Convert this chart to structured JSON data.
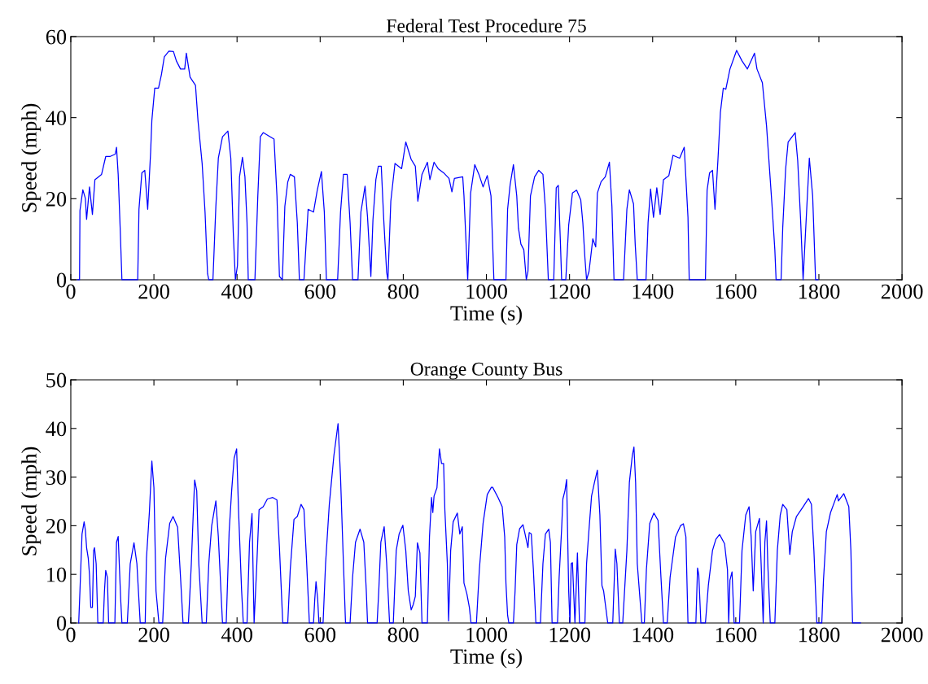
{
  "chart_data": [
    {
      "type": "line",
      "title": "Federal Test Procedure 75",
      "xlabel": "Time (s)",
      "ylabel": "Speed (mph)",
      "xlim": [
        0,
        2000
      ],
      "xticks": [
        0,
        200,
        400,
        600,
        800,
        1000,
        1200,
        1400,
        1600,
        1800,
        2000
      ],
      "ylim": [
        0,
        60
      ],
      "yticks": [
        0,
        20,
        40,
        60
      ],
      "grid": false,
      "series": [
        {
          "color": "#0000ff",
          "x": [
            16,
            21,
            22,
            29,
            35,
            38,
            45,
            52,
            58,
            74,
            84,
            94,
            107,
            110,
            114,
            119,
            123,
            161,
            164,
            171,
            178,
            185,
            192,
            195,
            202,
            211,
            218,
            225,
            236,
            247,
            254,
            264,
            274,
            278,
            287,
            300,
            306,
            316,
            323,
            329,
            332,
            342,
            349,
            355,
            365,
            378,
            385,
            391,
            396,
            401,
            406,
            413,
            419,
            424,
            427,
            443,
            450,
            456,
            463,
            479,
            489,
            496,
            502,
            509,
            515,
            522,
            528,
            538,
            545,
            550,
            561,
            571,
            584,
            593,
            603,
            610,
            615,
            642,
            649,
            656,
            665,
            672,
            678,
            691,
            698,
            708,
            714,
            722,
            727,
            734,
            740,
            747,
            753,
            760,
            763,
            770,
            780,
            796,
            806,
            819,
            829,
            835,
            845,
            858,
            864,
            874,
            884,
            897,
            910,
            917,
            923,
            943,
            946,
            955,
            962,
            972,
            982,
            992,
            1002,
            1011,
            1018,
            1047,
            1051,
            1057,
            1065,
            1073,
            1077,
            1083,
            1090,
            1096,
            1100,
            1106,
            1116,
            1126,
            1136,
            1142,
            1149,
            1162,
            1168,
            1173,
            1178,
            1181,
            1191,
            1198,
            1207,
            1217,
            1227,
            1232,
            1237,
            1241,
            1247,
            1256,
            1263,
            1267,
            1276,
            1286,
            1296,
            1302,
            1307,
            1330,
            1338,
            1344,
            1354,
            1358,
            1363,
            1384,
            1389,
            1395,
            1402,
            1410,
            1418,
            1426,
            1439,
            1449,
            1465,
            1476,
            1485,
            1488,
            1527,
            1531,
            1537,
            1544,
            1550,
            1557,
            1563,
            1570,
            1576,
            1586,
            1602,
            1615,
            1628,
            1645,
            1651,
            1664,
            1674,
            1687,
            1694,
            1697,
            1709,
            1713,
            1720,
            1726,
            1743,
            1749,
            1756,
            1762,
            1769,
            1777,
            1785,
            1792,
            1798
          ],
          "values": [
            0,
            0,
            17.1,
            22.2,
            20.1,
            14.9,
            22.9,
            16.1,
            24.7,
            26.0,
            30.4,
            30.4,
            31.0,
            32.7,
            26.0,
            12.1,
            0,
            0,
            17.4,
            26.4,
            27.0,
            17.4,
            31.4,
            39.3,
            47.3,
            47.3,
            50.6,
            55.0,
            56.4,
            56.3,
            54.0,
            52.0,
            52.0,
            55.9,
            50.0,
            48.0,
            39.3,
            28.7,
            16.7,
            1.5,
            0,
            0,
            18.1,
            30.0,
            35.3,
            36.7,
            30.0,
            11.4,
            0,
            3.5,
            25.4,
            30.2,
            25.4,
            14.1,
            0,
            0,
            20.7,
            35.3,
            36.3,
            35.3,
            34.7,
            20.7,
            0.8,
            0,
            18.1,
            24.1,
            26.0,
            25.4,
            14.1,
            0,
            0,
            17.4,
            16.7,
            22.1,
            26.7,
            16.7,
            0,
            0,
            16.7,
            26.0,
            26.0,
            14.1,
            0,
            0,
            16.7,
            23.1,
            15.4,
            0.8,
            14.8,
            24.7,
            28.0,
            28.0,
            14.8,
            1.8,
            0,
            19.4,
            28.7,
            27.4,
            34.0,
            29.7,
            28.0,
            19.4,
            26.0,
            29.0,
            24.7,
            29.0,
            27.4,
            26.4,
            25.0,
            21.7,
            25.0,
            25.4,
            20.7,
            0,
            21.4,
            28.4,
            26.0,
            22.9,
            25.7,
            20.7,
            0,
            0,
            17.4,
            23.4,
            28.4,
            20.7,
            12.8,
            8.8,
            7.4,
            0,
            2.1,
            20.7,
            25.4,
            27.0,
            26.0,
            17.4,
            0,
            0,
            22.7,
            23.3,
            9.4,
            0,
            0,
            13.5,
            21.4,
            22.1,
            19.7,
            14.1,
            5.4,
            0,
            2.1,
            10.1,
            8.1,
            21.4,
            24.2,
            25.4,
            29.0,
            18.1,
            0,
            0,
            17.4,
            22.2,
            18.7,
            8.8,
            0,
            0,
            14.1,
            22.4,
            15.4,
            22.7,
            16.1,
            24.7,
            25.7,
            30.7,
            30.0,
            32.7,
            15.4,
            0,
            0,
            22.1,
            26.4,
            27.0,
            17.4,
            29.4,
            41.3,
            47.3,
            47.0,
            52.0,
            56.6,
            54.0,
            52.0,
            55.9,
            52.0,
            48.6,
            38.0,
            18.7,
            7.4,
            0,
            0,
            12.8,
            27.4,
            34.0,
            36.3,
            29.4,
            14.8,
            0,
            14.1,
            30.0,
            20.7,
            0,
            0
          ]
        }
      ]
    },
    {
      "type": "line",
      "title": "Orange County Bus",
      "xlabel": "Time (s)",
      "ylabel": "Speed (mph)",
      "xlim": [
        0,
        2000
      ],
      "xticks": [
        0,
        200,
        400,
        600,
        800,
        1000,
        1200,
        1400,
        1600,
        1800,
        2000
      ],
      "ylim": [
        0,
        50
      ],
      "yticks": [
        0,
        10,
        20,
        30,
        40,
        50
      ],
      "grid": false,
      "series": [
        {
          "color": "#0000ff",
          "x": [
            19,
            22,
            27,
            32,
            35,
            38,
            42,
            45,
            48,
            52,
            55,
            57,
            61,
            65,
            78,
            81,
            84,
            88,
            91,
            106,
            110,
            114,
            120,
            123,
            136,
            143,
            152,
            159,
            167,
            179,
            182,
            189,
            195,
            200,
            205,
            212,
            221,
            228,
            238,
            246,
            257,
            264,
            270,
            283,
            290,
            295,
            298,
            303,
            308,
            316,
            326,
            332,
            339,
            349,
            355,
            365,
            374,
            381,
            387,
            393,
            399,
            404,
            411,
            415,
            424,
            430,
            436,
            441,
            447,
            453,
            463,
            473,
            486,
            496,
            502,
            510,
            522,
            528,
            537,
            545,
            554,
            561,
            567,
            574,
            584,
            587,
            590,
            594,
            597,
            607,
            613,
            622,
            633,
            643,
            649,
            656,
            661,
            672,
            678,
            685,
            696,
            705,
            711,
            714,
            737,
            741,
            746,
            754,
            760,
            767,
            776,
            783,
            790,
            799,
            806,
            812,
            819,
            824,
            829,
            834,
            840,
            845,
            858,
            863,
            868,
            871,
            874,
            881,
            887,
            892,
            897,
            900,
            906,
            909,
            914,
            920,
            930,
            936,
            942,
            946,
            953,
            959,
            963,
            976,
            983,
            992,
            1002,
            1012,
            1015,
            1028,
            1038,
            1044,
            1047,
            1051,
            1054,
            1065,
            1069,
            1073,
            1080,
            1088,
            1093,
            1100,
            1103,
            1108,
            1113,
            1119,
            1130,
            1136,
            1142,
            1150,
            1154,
            1158,
            1171,
            1175,
            1181,
            1184,
            1189,
            1193,
            1198,
            1201,
            1204,
            1207,
            1213,
            1219,
            1224,
            1237,
            1241,
            1247,
            1253,
            1260,
            1267,
            1273,
            1278,
            1282,
            1292,
            1304,
            1309,
            1310,
            1314,
            1320,
            1328,
            1338,
            1344,
            1351,
            1355,
            1359,
            1363,
            1374,
            1380,
            1385,
            1393,
            1403,
            1413,
            1420,
            1426,
            1435,
            1442,
            1455,
            1467,
            1474,
            1480,
            1485,
            1504,
            1508,
            1511,
            1516,
            1527,
            1534,
            1544,
            1552,
            1561,
            1573,
            1580,
            1583,
            1586,
            1591,
            1596,
            1609,
            1615,
            1624,
            1632,
            1637,
            1642,
            1648,
            1657,
            1661,
            1666,
            1670,
            1674,
            1677,
            1683,
            1694,
            1700,
            1707,
            1713,
            1723,
            1730,
            1736,
            1746,
            1762,
            1775,
            1782,
            1788,
            1795,
            1807,
            1811,
            1818,
            1828,
            1844,
            1847,
            1860,
            1872,
            1877,
            1881,
            1900
          ],
          "values": [
            0,
            6.6,
            18.3,
            20.8,
            19.1,
            15.5,
            13.3,
            9.9,
            3.2,
            3.2,
            14.9,
            15.5,
            12.2,
            0,
            0,
            6.6,
            10.8,
            9.4,
            0,
            0,
            16.6,
            17.8,
            4.9,
            0,
            0,
            12.2,
            16.5,
            12.2,
            0,
            0,
            13.3,
            22.7,
            33.3,
            27.8,
            6.6,
            0,
            0,
            13.3,
            20.5,
            21.9,
            19.7,
            9.4,
            0,
            0,
            12.2,
            23.3,
            29.4,
            27.2,
            12.2,
            0,
            0,
            12.2,
            20.0,
            25.1,
            17.7,
            0,
            0,
            18.8,
            27.2,
            33.9,
            35.8,
            22.2,
            6.6,
            0,
            0,
            16.6,
            22.5,
            0,
            11.0,
            23.3,
            23.9,
            25.5,
            25.8,
            25.3,
            15.5,
            0,
            0,
            11.0,
            21.3,
            21.9,
            24.4,
            23.3,
            13.3,
            0,
            0,
            4.9,
            8.5,
            4.9,
            0,
            0,
            12.2,
            24.4,
            34.4,
            41.0,
            30.0,
            12.2,
            0,
            0,
            9.4,
            16.6,
            19.3,
            16.6,
            6.6,
            0,
            0,
            6.6,
            16.6,
            19.8,
            12.2,
            0,
            0,
            14.9,
            18.3,
            20.1,
            14.9,
            6.6,
            2.7,
            3.8,
            5.5,
            16.5,
            14.4,
            0,
            0,
            17.7,
            25.8,
            22.7,
            26.1,
            27.8,
            35.8,
            32.8,
            32.8,
            23.3,
            12.2,
            0.4,
            14.9,
            20.8,
            22.6,
            18.3,
            19.8,
            8.2,
            6.0,
            3.2,
            0,
            0,
            11.0,
            20.5,
            26.4,
            27.9,
            27.9,
            25.8,
            23.9,
            17.7,
            8.2,
            1.6,
            0,
            0,
            6.6,
            16.1,
            19.4,
            20.2,
            18.3,
            15.5,
            18.6,
            18.3,
            11.0,
            0,
            0,
            12.2,
            18.3,
            19.3,
            16.6,
            0,
            0,
            9.4,
            19.4,
            25.5,
            27.2,
            29.5,
            6.6,
            0,
            12.2,
            12.4,
            0,
            14.4,
            0,
            0,
            12.2,
            19.4,
            26.1,
            28.9,
            31.4,
            22.2,
            7.7,
            6.6,
            0,
            0,
            12.2,
            15.2,
            12.2,
            0,
            0,
            14.9,
            28.9,
            34.4,
            36.2,
            28.9,
            12.2,
            0,
            0,
            11.0,
            20.5,
            22.6,
            21.1,
            9.4,
            0,
            0,
            9.4,
            17.7,
            20.0,
            20.4,
            17.7,
            0,
            0,
            11.3,
            9.9,
            0,
            0,
            7.7,
            14.9,
            17.2,
            18.2,
            16.3,
            11.0,
            0,
            8.8,
            10.5,
            0,
            0,
            14.9,
            22.2,
            23.9,
            17.7,
            6.6,
            18.8,
            21.5,
            12.2,
            0,
            16.6,
            21.0,
            12.2,
            0,
            0,
            14.9,
            22.2,
            24.4,
            23.3,
            14.1,
            18.8,
            21.9,
            23.9,
            25.6,
            24.4,
            14.9,
            0,
            0,
            8.8,
            18.8,
            22.7,
            26.4,
            25.1,
            26.6,
            23.9,
            14.9,
            0,
            0
          ]
        }
      ]
    }
  ]
}
